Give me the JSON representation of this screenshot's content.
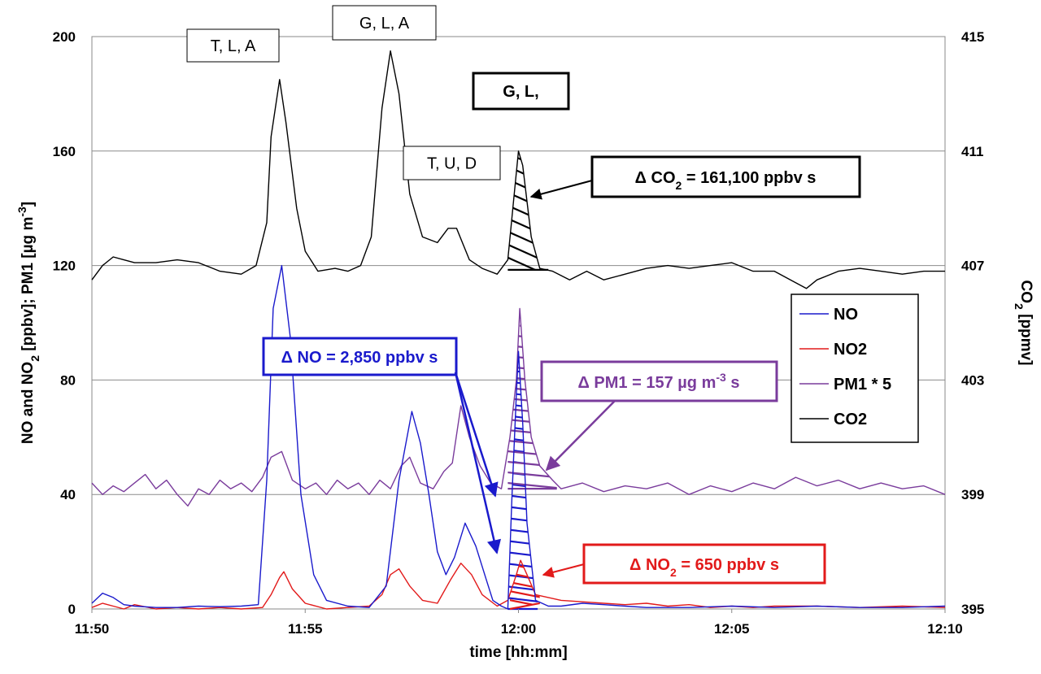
{
  "chart_data": {
    "type": "line",
    "xlabel": "time [hh:mm]",
    "ylabel_left_parts": [
      "NO and NO",
      "2",
      " [ppbv];  PM1 [µg m",
      "-3",
      "]"
    ],
    "ylabel_right_parts": [
      "CO",
      "2",
      " [ppmv]"
    ],
    "x_ticks": [
      "11:50",
      "11:55",
      "12:00",
      "12:05",
      "12:10"
    ],
    "x_tick_minutes": [
      0,
      5,
      10,
      15,
      20
    ],
    "xlim_minutes": [
      0,
      20
    ],
    "ylim_left": [
      0,
      200
    ],
    "y_ticks_left": [
      0,
      40,
      80,
      120,
      160,
      200
    ],
    "ylim_right": [
      395,
      415
    ],
    "y_ticks_right": [
      395,
      399,
      403,
      407,
      411,
      415
    ],
    "grid": "horizontal",
    "legend_position": "right",
    "colors": {
      "NO": "#1a1acc",
      "NO2": "#e21a1a",
      "PM1": "#7a3c9c",
      "CO2": "#000000"
    },
    "series": [
      {
        "name": "NO",
        "axis": "left",
        "points": [
          [
            0,
            2
          ],
          [
            0.25,
            5.5
          ],
          [
            0.5,
            4
          ],
          [
            0.75,
            1.5
          ],
          [
            1,
            1
          ],
          [
            1.5,
            0.5
          ],
          [
            2,
            0.5
          ],
          [
            2.5,
            1
          ],
          [
            3,
            0.8
          ],
          [
            3.5,
            1
          ],
          [
            3.9,
            1.5
          ],
          [
            4.1,
            45
          ],
          [
            4.25,
            105
          ],
          [
            4.45,
            120
          ],
          [
            4.65,
            95
          ],
          [
            4.9,
            40
          ],
          [
            5.2,
            12
          ],
          [
            5.5,
            3
          ],
          [
            6,
            1
          ],
          [
            6.5,
            0.5
          ],
          [
            6.9,
            8
          ],
          [
            7.2,
            45
          ],
          [
            7.5,
            69
          ],
          [
            7.7,
            58
          ],
          [
            7.9,
            40
          ],
          [
            8.1,
            20
          ],
          [
            8.3,
            12
          ],
          [
            8.5,
            18
          ],
          [
            8.75,
            30
          ],
          [
            9,
            22
          ],
          [
            9.25,
            10
          ],
          [
            9.4,
            3
          ],
          [
            9.6,
            1
          ],
          [
            9.75,
            0
          ],
          [
            9.85,
            40
          ],
          [
            9.95,
            75
          ],
          [
            10,
            90
          ],
          [
            10.1,
            65
          ],
          [
            10.2,
            30
          ],
          [
            10.4,
            3
          ],
          [
            10.7,
            1
          ],
          [
            11,
            1
          ],
          [
            11.5,
            2
          ],
          [
            12,
            1.5
          ],
          [
            12.5,
            1
          ],
          [
            13,
            0.5
          ],
          [
            14,
            0.5
          ],
          [
            15,
            1
          ],
          [
            16,
            0.5
          ],
          [
            17,
            1
          ],
          [
            18,
            0.5
          ],
          [
            19,
            0.5
          ],
          [
            20,
            1
          ]
        ]
      },
      {
        "name": "NO2",
        "axis": "left",
        "points": [
          [
            0,
            0.5
          ],
          [
            0.25,
            2
          ],
          [
            0.5,
            1
          ],
          [
            0.75,
            0
          ],
          [
            1,
            1.5
          ],
          [
            1.5,
            0
          ],
          [
            2,
            0.5
          ],
          [
            2.5,
            0
          ],
          [
            3,
            0.5
          ],
          [
            3.5,
            0
          ],
          [
            4,
            0.5
          ],
          [
            4.2,
            5
          ],
          [
            4.4,
            11
          ],
          [
            4.5,
            13
          ],
          [
            4.7,
            7
          ],
          [
            5,
            2
          ],
          [
            5.5,
            0
          ],
          [
            6,
            0.5
          ],
          [
            6.5,
            1
          ],
          [
            6.8,
            5
          ],
          [
            7,
            12
          ],
          [
            7.2,
            14
          ],
          [
            7.45,
            8
          ],
          [
            7.75,
            3
          ],
          [
            8.1,
            2
          ],
          [
            8.4,
            10
          ],
          [
            8.65,
            16
          ],
          [
            8.9,
            12
          ],
          [
            9.15,
            5
          ],
          [
            9.5,
            1
          ],
          [
            9.75,
            3
          ],
          [
            9.95,
            12
          ],
          [
            10.05,
            17
          ],
          [
            10.2,
            12
          ],
          [
            10.4,
            5
          ],
          [
            10.7,
            4
          ],
          [
            11,
            3
          ],
          [
            11.5,
            2.5
          ],
          [
            12,
            2
          ],
          [
            12.5,
            1.5
          ],
          [
            13,
            2
          ],
          [
            13.5,
            1
          ],
          [
            14,
            1.5
          ],
          [
            14.5,
            0.5
          ],
          [
            15,
            1
          ],
          [
            15.5,
            0.5
          ],
          [
            16,
            1
          ],
          [
            17,
            1
          ],
          [
            18,
            0.5
          ],
          [
            19,
            1
          ],
          [
            20,
            0.5
          ]
        ]
      },
      {
        "name": "PM1 * 5",
        "axis": "left",
        "points": [
          [
            0,
            44
          ],
          [
            0.25,
            40
          ],
          [
            0.5,
            43
          ],
          [
            0.75,
            41
          ],
          [
            1,
            44
          ],
          [
            1.25,
            47
          ],
          [
            1.5,
            42
          ],
          [
            1.75,
            45
          ],
          [
            2,
            40
          ],
          [
            2.25,
            36
          ],
          [
            2.5,
            42
          ],
          [
            2.75,
            40
          ],
          [
            3,
            45
          ],
          [
            3.25,
            42
          ],
          [
            3.5,
            44
          ],
          [
            3.75,
            41
          ],
          [
            4,
            46
          ],
          [
            4.2,
            53
          ],
          [
            4.45,
            55
          ],
          [
            4.7,
            45
          ],
          [
            5,
            42
          ],
          [
            5.25,
            44
          ],
          [
            5.5,
            40
          ],
          [
            5.75,
            45
          ],
          [
            6,
            42
          ],
          [
            6.25,
            44
          ],
          [
            6.5,
            40
          ],
          [
            6.75,
            45
          ],
          [
            7,
            42
          ],
          [
            7.25,
            50
          ],
          [
            7.45,
            53
          ],
          [
            7.7,
            44
          ],
          [
            8,
            42
          ],
          [
            8.25,
            48
          ],
          [
            8.45,
            51
          ],
          [
            8.65,
            71
          ],
          [
            8.85,
            60
          ],
          [
            9.1,
            50
          ],
          [
            9.35,
            44
          ],
          [
            9.6,
            42
          ],
          [
            9.8,
            60
          ],
          [
            9.95,
            80
          ],
          [
            10.03,
            105
          ],
          [
            10.15,
            80
          ],
          [
            10.3,
            60
          ],
          [
            10.5,
            50
          ],
          [
            10.8,
            45
          ],
          [
            11,
            42
          ],
          [
            11.5,
            44
          ],
          [
            12,
            41
          ],
          [
            12.5,
            43
          ],
          [
            13,
            42
          ],
          [
            13.5,
            44
          ],
          [
            14,
            40
          ],
          [
            14.5,
            43
          ],
          [
            15,
            41
          ],
          [
            15.5,
            44
          ],
          [
            16,
            42
          ],
          [
            16.5,
            46
          ],
          [
            17,
            43
          ],
          [
            17.5,
            45
          ],
          [
            18,
            42
          ],
          [
            18.5,
            44
          ],
          [
            19,
            42
          ],
          [
            19.5,
            43
          ],
          [
            20,
            40
          ]
        ]
      },
      {
        "name": "CO2",
        "axis": "right",
        "points": [
          [
            0,
            406.5
          ],
          [
            0.25,
            407
          ],
          [
            0.5,
            407.3
          ],
          [
            0.75,
            407.2
          ],
          [
            1,
            407.1
          ],
          [
            1.5,
            407.1
          ],
          [
            2,
            407.2
          ],
          [
            2.5,
            407.1
          ],
          [
            3,
            406.8
          ],
          [
            3.5,
            406.7
          ],
          [
            3.85,
            407
          ],
          [
            4.1,
            408.5
          ],
          [
            4.2,
            411.5
          ],
          [
            4.4,
            413.5
          ],
          [
            4.55,
            412
          ],
          [
            4.8,
            409
          ],
          [
            5,
            407.5
          ],
          [
            5.3,
            406.8
          ],
          [
            5.7,
            406.9
          ],
          [
            6,
            406.8
          ],
          [
            6.3,
            407
          ],
          [
            6.55,
            408
          ],
          [
            6.8,
            412.5
          ],
          [
            7,
            414.5
          ],
          [
            7.2,
            413
          ],
          [
            7.45,
            409.5
          ],
          [
            7.75,
            408
          ],
          [
            8.1,
            407.8
          ],
          [
            8.35,
            408.3
          ],
          [
            8.55,
            408.3
          ],
          [
            8.85,
            407.2
          ],
          [
            9.15,
            406.9
          ],
          [
            9.5,
            406.7
          ],
          [
            9.75,
            407.2
          ],
          [
            9.9,
            409.5
          ],
          [
            10,
            411
          ],
          [
            10.1,
            410.5
          ],
          [
            10.3,
            408
          ],
          [
            10.5,
            406.9
          ],
          [
            10.8,
            406.8
          ],
          [
            11.2,
            406.5
          ],
          [
            11.6,
            406.8
          ],
          [
            12,
            406.5
          ],
          [
            12.5,
            406.7
          ],
          [
            13,
            406.9
          ],
          [
            13.5,
            407
          ],
          [
            14,
            406.9
          ],
          [
            14.5,
            407
          ],
          [
            15,
            407.1
          ],
          [
            15.5,
            406.8
          ],
          [
            16,
            406.8
          ],
          [
            16.5,
            406.4
          ],
          [
            16.75,
            406.2
          ],
          [
            17,
            406.5
          ],
          [
            17.5,
            406.8
          ],
          [
            18,
            406.9
          ],
          [
            18.5,
            406.8
          ],
          [
            19,
            406.7
          ],
          [
            19.5,
            406.8
          ],
          [
            20,
            406.8
          ]
        ]
      }
    ],
    "event_labels": [
      {
        "text": "T, L, A",
        "bold": false
      },
      {
        "text": "G, L, A",
        "bold": false
      },
      {
        "text": "T, U, D",
        "bold": false
      },
      {
        "text": "G, L,",
        "bold": true
      }
    ],
    "annotations": {
      "co2": {
        "prefix": "Δ CO",
        "sub": "2",
        "suffix": " = 161,100 ppbv s",
        "color": "#000000"
      },
      "no": {
        "text": "Δ NO = 2,850 ppbv s",
        "color": "#1a1acc"
      },
      "pm1": {
        "prefix": "Δ PM1 = 157 µg m",
        "sup": "-3",
        "suffix": " s",
        "color": "#7a3c9c"
      },
      "no2": {
        "prefix": "Δ NO",
        "sub": "2",
        "suffix": " = 650 ppbv s",
        "color": "#e21a1a"
      }
    },
    "legend": [
      "NO",
      "NO2",
      "PM1 * 5",
      "CO2"
    ]
  }
}
